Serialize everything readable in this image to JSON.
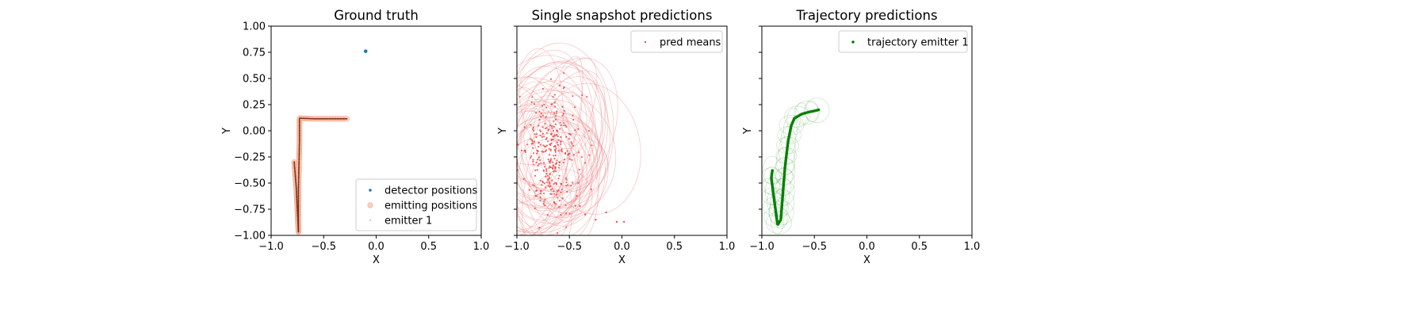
{
  "chart_data": [
    {
      "type": "scatter",
      "title": "Ground truth",
      "xlabel": "X",
      "ylabel": "Y",
      "xlim": [
        -1.0,
        1.0
      ],
      "ylim": [
        -1.0,
        1.0
      ],
      "xticks": [
        "−1.0",
        "−0.5",
        "0.0",
        "0.5",
        "1.0"
      ],
      "yticks": [
        "1.00",
        "0.75",
        "0.50",
        "0.25",
        "0.00",
        "−0.25",
        "−0.50",
        "−0.75",
        "−1.00"
      ],
      "legend_position": "lower-right",
      "series": [
        {
          "name": "detector positions",
          "color": "#1f77b4",
          "points": [
            [
              -0.1,
              0.76
            ]
          ]
        },
        {
          "name": "emitting positions",
          "color": "#f4a582",
          "path": [
            [
              -0.78,
              -0.3
            ],
            [
              -0.76,
              -0.55
            ],
            [
              -0.74,
              -0.97
            ],
            [
              -0.74,
              -0.55
            ],
            [
              -0.73,
              -0.1
            ],
            [
              -0.73,
              0.12
            ],
            [
              -0.6,
              0.115
            ],
            [
              -0.45,
              0.115
            ],
            [
              -0.28,
              0.115
            ]
          ]
        },
        {
          "name": "emitter 1",
          "color": "#d62728",
          "path": [
            [
              -0.78,
              -0.3
            ],
            [
              -0.76,
              -0.55
            ],
            [
              -0.74,
              -0.97
            ],
            [
              -0.74,
              -0.55
            ],
            [
              -0.73,
              -0.1
            ],
            [
              -0.73,
              0.12
            ],
            [
              -0.6,
              0.115
            ],
            [
              -0.45,
              0.115
            ],
            [
              -0.28,
              0.115
            ]
          ]
        }
      ]
    },
    {
      "type": "scatter",
      "title": "Single snapshot predictions",
      "xlabel": "X",
      "ylabel": "Y",
      "xlim": [
        -1.0,
        1.0
      ],
      "ylim": [
        -1.0,
        1.0
      ],
      "xticks": [
        "−1.0",
        "−0.5",
        "0.0",
        "0.5",
        "1.0"
      ],
      "legend_position": "upper-right",
      "series": [
        {
          "name": "pred means",
          "color": "#f03b3b",
          "cluster": {
            "center": [
              -0.68,
              -0.25
            ],
            "spread": [
              0.13,
              0.28
            ],
            "count": 320
          },
          "outliers": [
            [
              -0.35,
              -0.8
            ],
            [
              -0.25,
              -0.85
            ],
            [
              -0.15,
              -0.78
            ],
            [
              -0.05,
              -0.87
            ],
            [
              0.02,
              -0.87
            ],
            [
              -0.4,
              -0.72
            ]
          ]
        }
      ]
    },
    {
      "type": "scatter",
      "title": "Trajectory predictions",
      "xlabel": "X",
      "ylabel": "Y",
      "xlim": [
        -1.0,
        1.0
      ],
      "ylim": [
        -1.0,
        1.0
      ],
      "xticks": [
        "−1.0",
        "−0.5",
        "0.0",
        "0.5",
        "1.0"
      ],
      "legend_position": "upper-right",
      "series": [
        {
          "name": "trajectory emitter 1",
          "color": "#008000",
          "path": [
            [
              -0.9,
              -0.38
            ],
            [
              -0.91,
              -0.45
            ],
            [
              -0.88,
              -0.68
            ],
            [
              -0.85,
              -0.9
            ],
            [
              -0.82,
              -0.85
            ],
            [
              -0.8,
              -0.6
            ],
            [
              -0.78,
              -0.35
            ],
            [
              -0.75,
              -0.1
            ],
            [
              -0.72,
              0.05
            ],
            [
              -0.69,
              0.12
            ],
            [
              -0.62,
              0.16
            ],
            [
              -0.55,
              0.18
            ],
            [
              -0.5,
              0.19
            ],
            [
              -0.46,
              0.2
            ]
          ]
        }
      ]
    }
  ]
}
